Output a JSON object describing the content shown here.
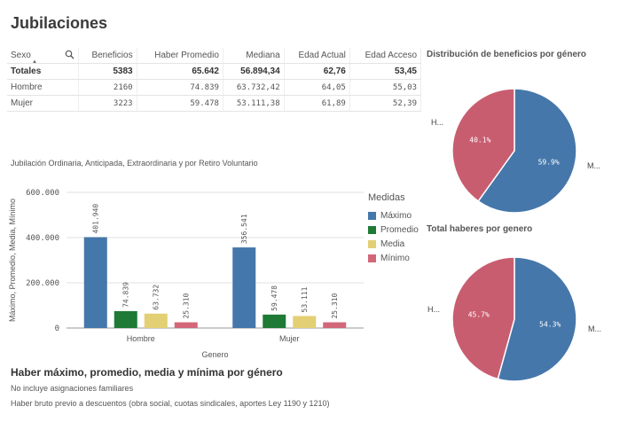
{
  "title": "Jubilaciones",
  "table": {
    "headers": [
      "Sexo",
      "Beneficios",
      "Haber Promedio",
      "Mediana",
      "Edad Actual",
      "Edad Acceso"
    ],
    "totals": [
      "Totales",
      "5383",
      "65.642",
      "56.894,34",
      "62,76",
      "53,45"
    ],
    "rows": [
      [
        "Hombre",
        "2160",
        "74.839",
        "63.732,42",
        "64,05",
        "55,03"
      ],
      [
        "Mujer",
        "3223",
        "59.478",
        "53.111,38",
        "61,89",
        "52,39"
      ]
    ]
  },
  "bar_subtitle": "Jubilación Ordinaria, Anticipada, Extraordinaria y por Retiro Voluntario",
  "legend_title": "Medidas",
  "colors": {
    "maximo": "#4477aa",
    "promedio": "#1e7a35",
    "media": "#e3cf74",
    "minimo": "#d3677a"
  },
  "footer": {
    "title": "Haber máximo, promedio, media y mínima por género",
    "note1": "No incluye asignaciones familiares",
    "note2": "Haber bruto previo a descuentos (obra social, cuotas sindicales, aportes Ley 1190 y 1210)"
  },
  "pie1": {
    "title": "Distribución de beneficios por género",
    "label_h": "H...",
    "label_m": "M..."
  },
  "pie2": {
    "title": "Total haberes por genero",
    "label_h": "H...",
    "label_m": "M..."
  },
  "chart_data": [
    {
      "type": "bar",
      "xlabel": "Genero",
      "ylabel": "Máximo, Promedio, Media, Mínimo",
      "categories": [
        "Hombre",
        "Mujer"
      ],
      "ylim": [
        0,
        600000
      ],
      "yticks": [
        "0",
        "200.000",
        "400.000",
        "600.000"
      ],
      "series": [
        {
          "name": "Máximo",
          "values": [
            401940,
            356541
          ],
          "labels": [
            "401.940",
            "356.541"
          ],
          "color": "#4477aa"
        },
        {
          "name": "Promedio",
          "values": [
            74839,
            59478
          ],
          "labels": [
            "74.839",
            "59.478"
          ],
          "color": "#1e7a35"
        },
        {
          "name": "Media",
          "values": [
            63732,
            53111
          ],
          "labels": [
            "63.732",
            "53.111"
          ],
          "color": "#e3cf74"
        },
        {
          "name": "Mínimo",
          "values": [
            25310,
            25310
          ],
          "labels": [
            "25.310",
            "25.310"
          ],
          "color": "#d3677a"
        }
      ]
    },
    {
      "type": "pie",
      "title": "Distribución de beneficios por género",
      "slices": [
        {
          "name": "Hombre",
          "value": 40.1,
          "label": "40.1%",
          "color": "#c95d70"
        },
        {
          "name": "Mujer",
          "value": 59.9,
          "label": "59.9%",
          "color": "#4677aa"
        }
      ]
    },
    {
      "type": "pie",
      "title": "Total haberes por genero",
      "slices": [
        {
          "name": "Hombre",
          "value": 45.7,
          "label": "45.7%",
          "color": "#c95d70"
        },
        {
          "name": "Mujer",
          "value": 54.3,
          "label": "54.3%",
          "color": "#4677aa"
        }
      ]
    }
  ]
}
